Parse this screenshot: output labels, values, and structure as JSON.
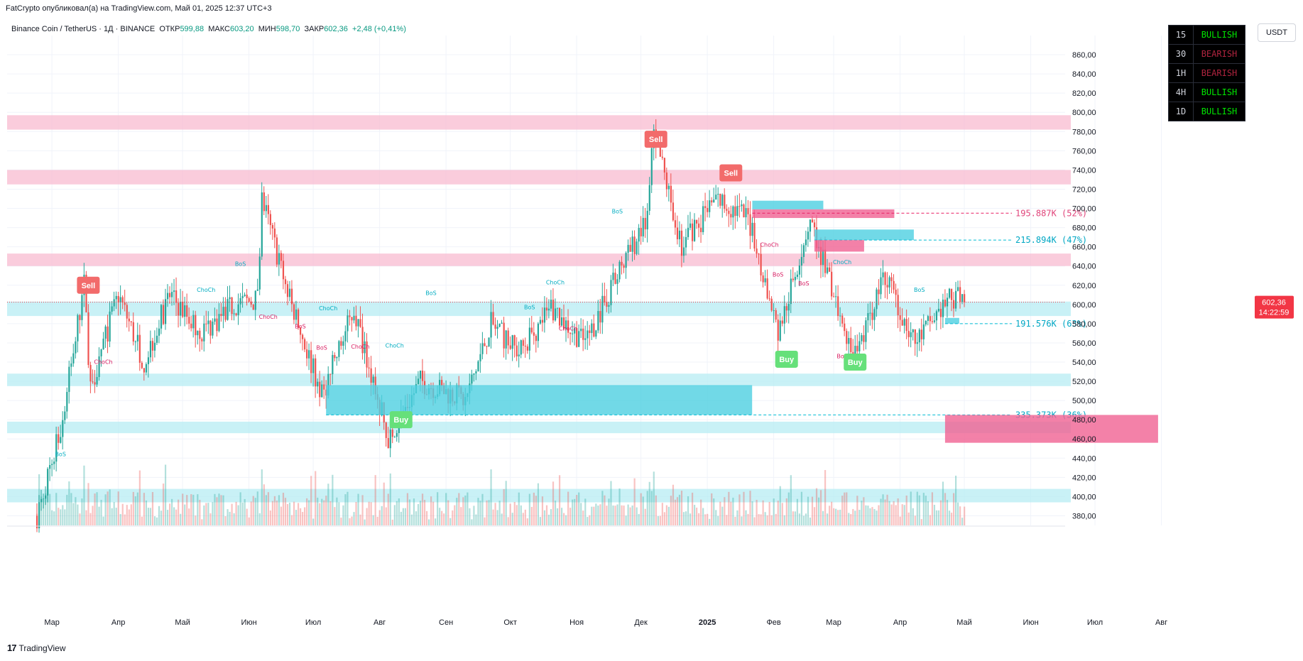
{
  "header": {
    "published": "FatCrypto опубликовал(а) на TradingView.com, Май 01, 2025 12:37 UTC+3"
  },
  "legend": {
    "symbol": "Binance Coin / TetherUS · 1Д · BINANCE",
    "open_label": "ОТКР",
    "open": "599,88",
    "high_label": "МАКС",
    "high": "603,20",
    "low_label": "МИН",
    "low": "598,70",
    "close_label": "ЗАКР",
    "close": "602,36",
    "change": "+2,48 (+0,41%)"
  },
  "currency": "USDT",
  "bias_table": [
    {
      "tf": "15",
      "status": "BULLISH",
      "color": "#00e600"
    },
    {
      "tf": "30",
      "status": "BEARISH",
      "color": "#b0243f"
    },
    {
      "tf": "1H",
      "status": "BEARISH",
      "color": "#b0243f"
    },
    {
      "tf": "4H",
      "status": "BULLISH",
      "color": "#00e600"
    },
    {
      "tf": "1D",
      "status": "BULLISH",
      "color": "#00e600"
    }
  ],
  "price_tag": {
    "price": "602,36",
    "countdown": "14:22:59"
  },
  "footer": {
    "brand": "TradingView"
  },
  "colors": {
    "up": "#26a69a",
    "down": "#ef5350",
    "up_volume": "#26a69a",
    "down_volume": "#ef5350",
    "bear_zone": "#f8bbd0",
    "bull_zone": "#b2ebf2",
    "bull_ob": "#4dd0e1",
    "bear_ob": "#f06292",
    "buy": "#66e07a",
    "sell": "#f26b6b",
    "tag_bg": "#f23645"
  },
  "chart_data": {
    "type": "candlestick",
    "title": "Binance Coin / TetherUS",
    "timeframe": "1D",
    "y_axis": {
      "ticks": [
        "380,00",
        "400,00",
        "420,00",
        "440,00",
        "460,00",
        "480,00",
        "500,00",
        "520,00",
        "540,00",
        "560,00",
        "580,00",
        "600,00",
        "620,00",
        "640,00",
        "660,00",
        "680,00",
        "700,00",
        "720,00",
        "740,00",
        "760,00",
        "780,00",
        "800,00",
        "820,00",
        "840,00",
        "860,00"
      ],
      "range": [
        370,
        880
      ]
    },
    "x_axis": {
      "ticks": [
        "Мар",
        "Апр",
        "Май",
        "Июн",
        "Июл",
        "Авг",
        "Сен",
        "Окт",
        "Ноя",
        "Дек",
        "2025",
        "Фев",
        "Мар",
        "Апр",
        "Май",
        "Июн",
        "Июл",
        "Авг"
      ]
    },
    "price_path": [
      {
        "date": "2024-02-23",
        "price": 380
      },
      {
        "date": "2024-03-05",
        "price": 470
      },
      {
        "date": "2024-03-16",
        "price": 620
      },
      {
        "date": "2024-03-19",
        "price": 515
      },
      {
        "date": "2024-04-01",
        "price": 610
      },
      {
        "date": "2024-04-13",
        "price": 540
      },
      {
        "date": "2024-04-25",
        "price": 610
      },
      {
        "date": "2024-05-10",
        "price": 570
      },
      {
        "date": "2024-05-25",
        "price": 600
      },
      {
        "date": "2024-06-05",
        "price": 605
      },
      {
        "date": "2024-06-07",
        "price": 710
      },
      {
        "date": "2024-06-20",
        "price": 605
      },
      {
        "date": "2024-07-05",
        "price": 505
      },
      {
        "date": "2024-07-20",
        "price": 595
      },
      {
        "date": "2024-08-05",
        "price": 460
      },
      {
        "date": "2024-08-20",
        "price": 520
      },
      {
        "date": "2024-09-10",
        "price": 500
      },
      {
        "date": "2024-09-22",
        "price": 580
      },
      {
        "date": "2024-10-05",
        "price": 550
      },
      {
        "date": "2024-10-20",
        "price": 595
      },
      {
        "date": "2024-11-05",
        "price": 560
      },
      {
        "date": "2024-11-20",
        "price": 630
      },
      {
        "date": "2024-12-04",
        "price": 690
      },
      {
        "date": "2024-12-07",
        "price": 780
      },
      {
        "date": "2024-12-20",
        "price": 660
      },
      {
        "date": "2025-01-05",
        "price": 710
      },
      {
        "date": "2025-01-20",
        "price": 690
      },
      {
        "date": "2025-02-03",
        "price": 570
      },
      {
        "date": "2025-02-18",
        "price": 690
      },
      {
        "date": "2025-03-10",
        "price": 540
      },
      {
        "date": "2025-03-25",
        "price": 630
      },
      {
        "date": "2025-04-08",
        "price": 560
      },
      {
        "date": "2025-04-25",
        "price": 610
      },
      {
        "date": "2025-05-01",
        "price": 602.36
      }
    ],
    "last_price": 602.36,
    "supply_zones": [
      [
        782,
        797
      ],
      [
        725,
        740
      ],
      [
        640,
        653
      ]
    ],
    "demand_zones": [
      [
        588,
        603
      ],
      [
        515,
        528
      ],
      [
        466,
        478
      ],
      [
        394,
        408
      ]
    ],
    "order_blocks": [
      {
        "kind": "bull",
        "top": 516,
        "bottom": 485,
        "label": "335.373K (36%)",
        "line": 485
      },
      {
        "kind": "bear",
        "top": 485,
        "bottom": 456
      },
      {
        "kind": "bull",
        "top": 708,
        "bottom": 699
      },
      {
        "kind": "bear",
        "top": 699,
        "bottom": 690,
        "label": "195.887K (52%)",
        "line": 695
      },
      {
        "kind": "bull",
        "top": 678,
        "bottom": 667,
        "label": "215.894K (47%)",
        "line": 667
      },
      {
        "kind": "bear",
        "top": 667,
        "bottom": 655
      },
      {
        "kind": "bull",
        "top": 586,
        "bottom": 580,
        "label": "191.576K (63%)",
        "line": 580
      }
    ],
    "structure_labels": [
      {
        "text": "BoS",
        "kind": "bull",
        "date": "2024-03-05",
        "price": 442
      },
      {
        "text": "ChoCh",
        "kind": "bear",
        "date": "2024-03-25",
        "price": 538
      },
      {
        "text": "ChoCh",
        "kind": "bull",
        "date": "2024-05-12",
        "price": 613
      },
      {
        "text": "BoS",
        "kind": "bull",
        "date": "2024-05-28",
        "price": 640
      },
      {
        "text": "ChoCh",
        "kind": "bear",
        "date": "2024-06-10",
        "price": 585
      },
      {
        "text": "BoS",
        "kind": "bear",
        "date": "2024-06-25",
        "price": 575
      },
      {
        "text": "ChoCh",
        "kind": "bull",
        "date": "2024-07-08",
        "price": 594
      },
      {
        "text": "BoS",
        "kind": "bear",
        "date": "2024-07-05",
        "price": 553
      },
      {
        "text": "ChoCh",
        "kind": "bear",
        "date": "2024-07-23",
        "price": 554
      },
      {
        "text": "ChoCh",
        "kind": "bull",
        "date": "2024-08-08",
        "price": 555
      },
      {
        "text": "BoS",
        "kind": "bull",
        "date": "2024-08-25",
        "price": 610
      },
      {
        "text": "BoS",
        "kind": "bull",
        "date": "2024-10-10",
        "price": 595
      },
      {
        "text": "ChoCh",
        "kind": "bull",
        "date": "2024-10-22",
        "price": 621
      },
      {
        "text": "ChoCh",
        "kind": "bear",
        "date": "2024-10-28",
        "price": 573
      },
      {
        "text": "BoS",
        "kind": "bull",
        "date": "2024-11-20",
        "price": 695
      },
      {
        "text": "ChoCh",
        "kind": "bear",
        "date": "2025-01-30",
        "price": 660
      },
      {
        "text": "BoS",
        "kind": "bear",
        "date": "2025-02-03",
        "price": 629
      },
      {
        "text": "BoS",
        "kind": "bear",
        "date": "2025-02-15",
        "price": 620
      },
      {
        "text": "ChoCh",
        "kind": "bull",
        "date": "2025-03-05",
        "price": 642
      },
      {
        "text": "BoS",
        "kind": "bear",
        "date": "2025-03-05",
        "price": 544
      },
      {
        "text": "BoS",
        "kind": "bull",
        "date": "2025-04-10",
        "price": 613
      }
    ],
    "signals": [
      {
        "text": "Sell",
        "kind": "sell",
        "date": "2024-03-18",
        "price": 620
      },
      {
        "text": "Sell",
        "kind": "sell",
        "date": "2024-12-08",
        "price": 772
      },
      {
        "text": "Sell",
        "kind": "sell",
        "date": "2025-01-12",
        "price": 737
      },
      {
        "text": "Buy",
        "kind": "buy",
        "date": "2024-08-11",
        "price": 480
      },
      {
        "text": "Buy",
        "kind": "buy",
        "date": "2025-02-07",
        "price": 543
      },
      {
        "text": "Buy",
        "kind": "buy",
        "date": "2025-03-11",
        "price": 540
      }
    ]
  }
}
